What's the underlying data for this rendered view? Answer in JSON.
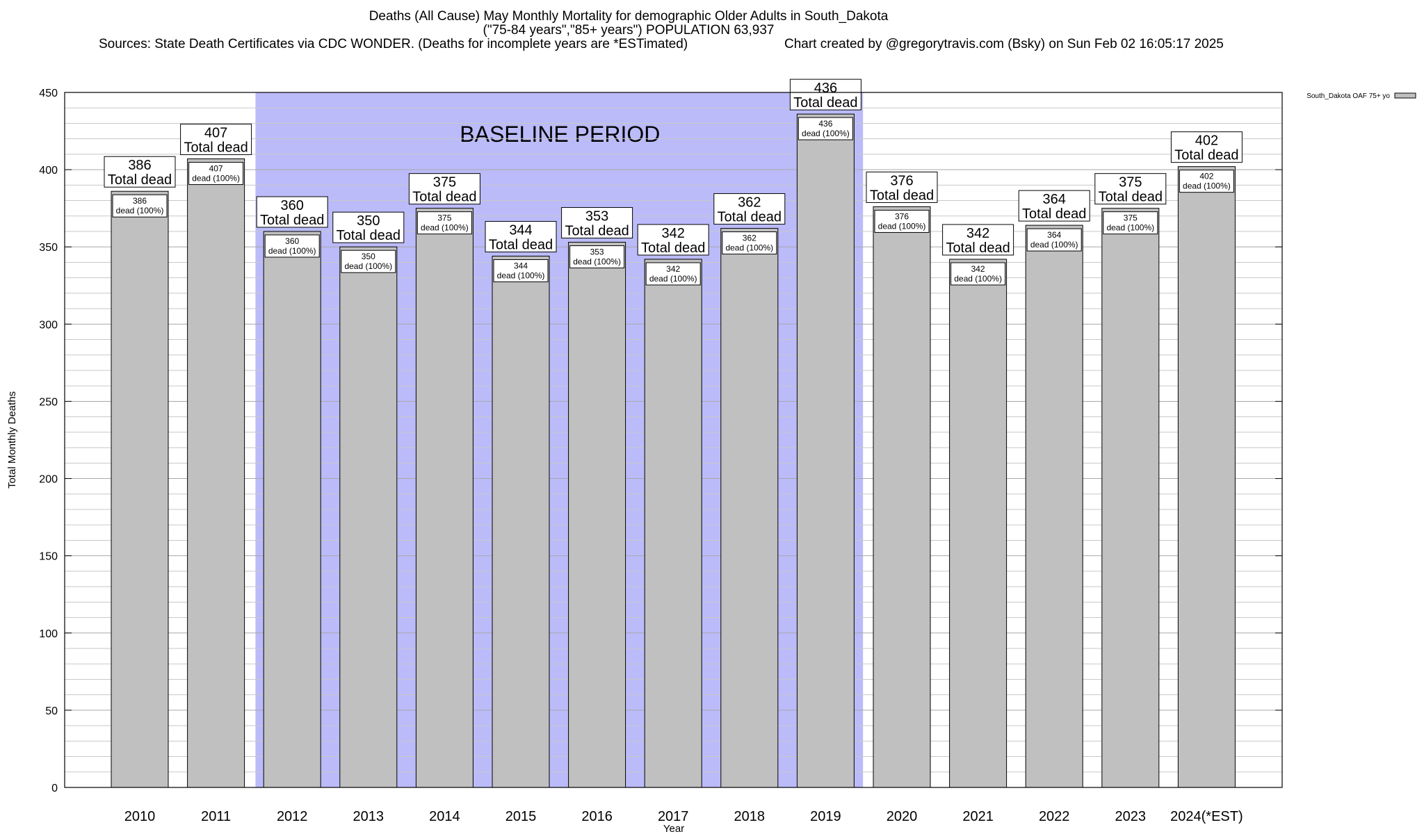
{
  "header": {
    "title_line1": "Deaths (All Cause) May Monthly Mortality for demographic Older Adults in South_Dakota",
    "title_line2": "(\"75-84 years\",\"85+ years\") POPULATION 63,937",
    "sources": "Sources: State Death Certificates via CDC WONDER. (Deaths for incomplete years are *ESTimated)",
    "credit": "Chart created by @gregorytravis.com (Bsky) on Sun Feb 02 16:05:17 2025"
  },
  "chart_data": {
    "type": "bar",
    "xlabel": "Year",
    "ylabel": "Total Monthly Deaths",
    "ylim": [
      0,
      450
    ],
    "yticks": [
      0,
      50,
      100,
      150,
      200,
      250,
      300,
      350,
      400,
      450
    ],
    "minor_grid_step": 10,
    "grid": true,
    "legend_position": "top-right",
    "categories": [
      "2010",
      "2011",
      "2012",
      "2013",
      "2014",
      "2015",
      "2016",
      "2017",
      "2018",
      "2019",
      "2020",
      "2021",
      "2022",
      "2023",
      "2024(*EST)"
    ],
    "series": [
      {
        "name": "South_Dakota OAF 75+ yo",
        "values": [
          386,
          407,
          360,
          350,
          375,
          344,
          353,
          342,
          362,
          436,
          376,
          342,
          364,
          375,
          402
        ]
      }
    ],
    "top_label_suffix": "Total dead",
    "inner_label_suffix": "dead (100%)",
    "baseline_period": {
      "label": "BASELINE PERIOD",
      "from": "2012",
      "to": "2019"
    },
    "colors": {
      "bar": "#c0c0c0",
      "baseline": "#bbbbfa",
      "grid": "#c8c8c8"
    }
  }
}
